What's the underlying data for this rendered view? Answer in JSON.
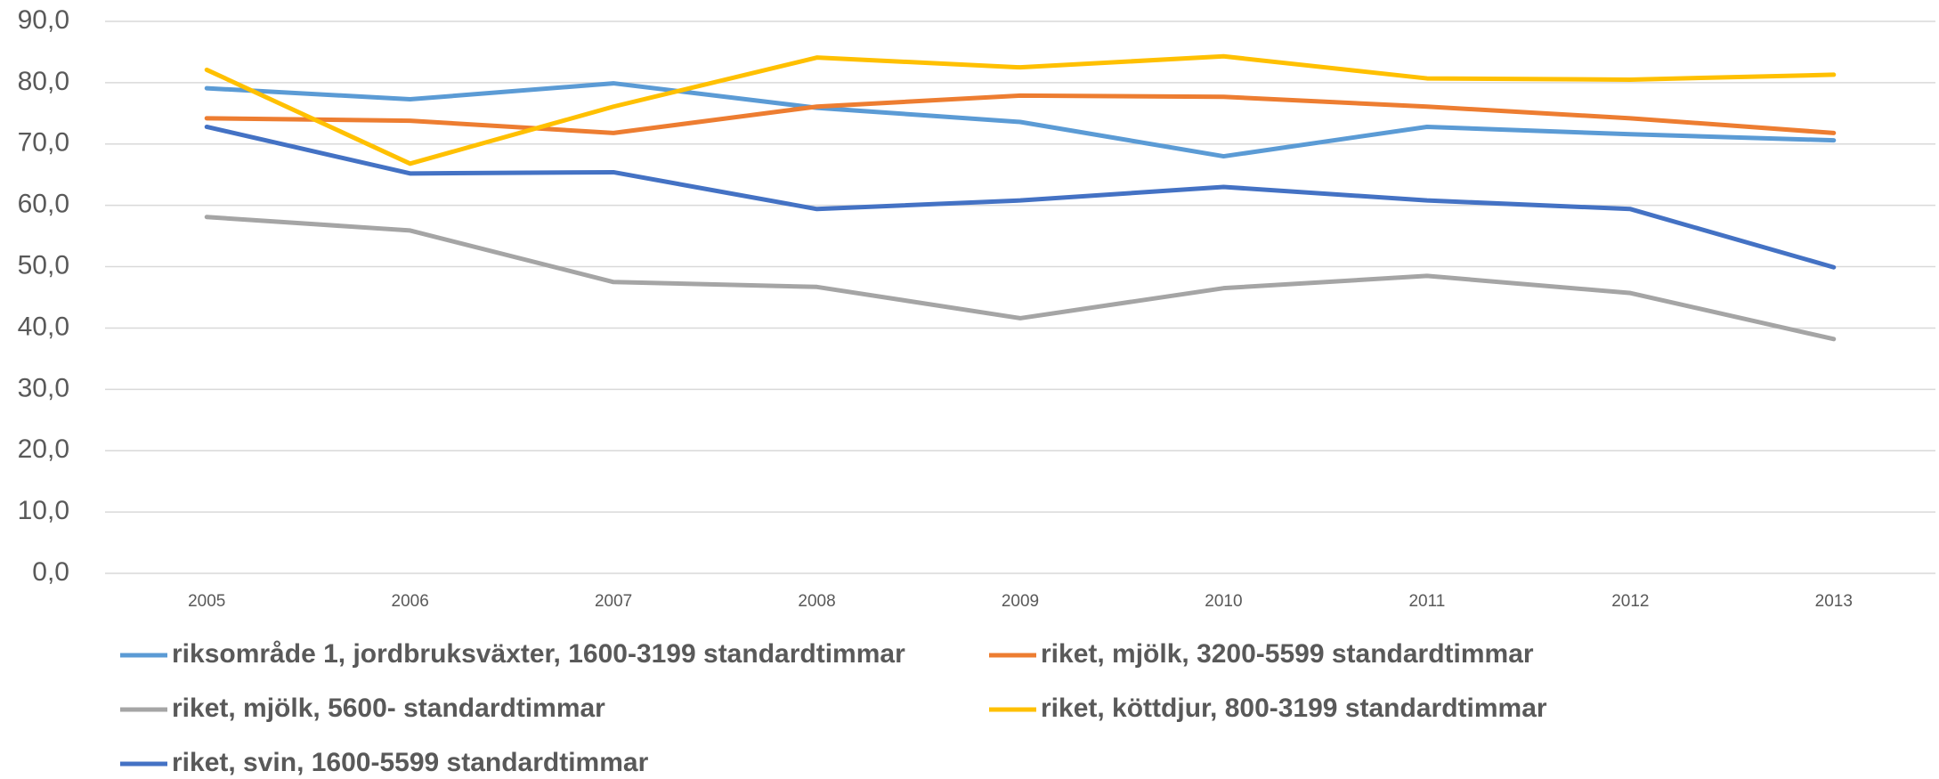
{
  "chart_data": {
    "type": "line",
    "categories": [
      "2005",
      "2006",
      "2007",
      "2008",
      "2009",
      "2010",
      "2011",
      "2012",
      "2013"
    ],
    "series": [
      {
        "name": "riksområde 1, jordbruksväxter, 1600-3199 standardtimmar",
        "color": "#5b9bd5",
        "values": [
          79.1,
          77.3,
          79.9,
          75.9,
          73.6,
          68.0,
          72.8,
          71.6,
          70.6
        ]
      },
      {
        "name": "riket, mjölk, 3200-5599 standardtimmar",
        "color": "#ed7d31",
        "values": [
          74.2,
          73.8,
          71.8,
          76.1,
          77.9,
          77.7,
          76.1,
          74.2,
          71.8
        ]
      },
      {
        "name": "riket, mjölk, 5600- standardtimmar",
        "color": "#a5a5a5",
        "values": [
          58.1,
          55.9,
          47.5,
          46.7,
          41.6,
          46.5,
          48.5,
          45.7,
          38.2
        ]
      },
      {
        "name": "riket, köttdjur, 800-3199 standardtimmar",
        "color": "#ffc000",
        "values": [
          82.1,
          66.8,
          76.1,
          84.1,
          82.5,
          84.3,
          80.7,
          80.5,
          81.3
        ]
      },
      {
        "name": "riket, svin, 1600-5599 standardtimmar",
        "color": "#4472c4",
        "values": [
          72.8,
          65.2,
          65.4,
          59.4,
          60.8,
          63.0,
          60.8,
          59.4,
          49.9
        ]
      }
    ],
    "ylim": [
      0,
      90
    ],
    "yticks": [
      {
        "value": 0,
        "label": "0,0"
      },
      {
        "value": 10,
        "label": "10,0"
      },
      {
        "value": 20,
        "label": "20,0"
      },
      {
        "value": 30,
        "label": "30,0"
      },
      {
        "value": 40,
        "label": "40,0"
      },
      {
        "value": 50,
        "label": "50,0"
      },
      {
        "value": 60,
        "label": "60,0"
      },
      {
        "value": 70,
        "label": "70,0"
      },
      {
        "value": 80,
        "label": "80,0"
      },
      {
        "value": 90,
        "label": "90,0"
      }
    ],
    "grid": true,
    "legend": "bottom"
  }
}
